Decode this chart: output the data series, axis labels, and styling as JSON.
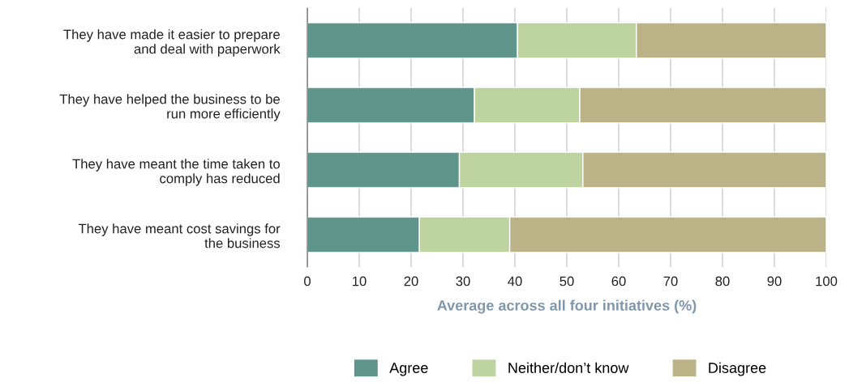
{
  "chart_data": {
    "type": "bar",
    "orientation": "horizontal",
    "stacked": true,
    "categories": [
      "They have made it easier to prepare\nand deal with paperwork",
      "They have helped the business to be\nrun more efficiently",
      "They have meant the time taken to\ncomply has reduced",
      "They have meant cost savings for\nthe business"
    ],
    "series": [
      {
        "name": "Agree",
        "color": "#5f958b",
        "values": [
          40.5,
          32.2,
          29.3,
          21.6
        ]
      },
      {
        "name": "Neither/don’t know",
        "color": "#bdd4a0",
        "values": [
          22.9,
          20.3,
          23.8,
          17.4
        ]
      },
      {
        "name": "Disagree",
        "color": "#bcb287",
        "values": [
          36.6,
          47.5,
          46.9,
          61.0
        ]
      }
    ],
    "xlabel": "Average across all four initiatives (%)",
    "xlim": [
      0,
      100
    ],
    "xticks": [
      0,
      10,
      20,
      30,
      40,
      50,
      60,
      70,
      80,
      90,
      100
    ],
    "grid": "x",
    "legend": "bottom"
  }
}
